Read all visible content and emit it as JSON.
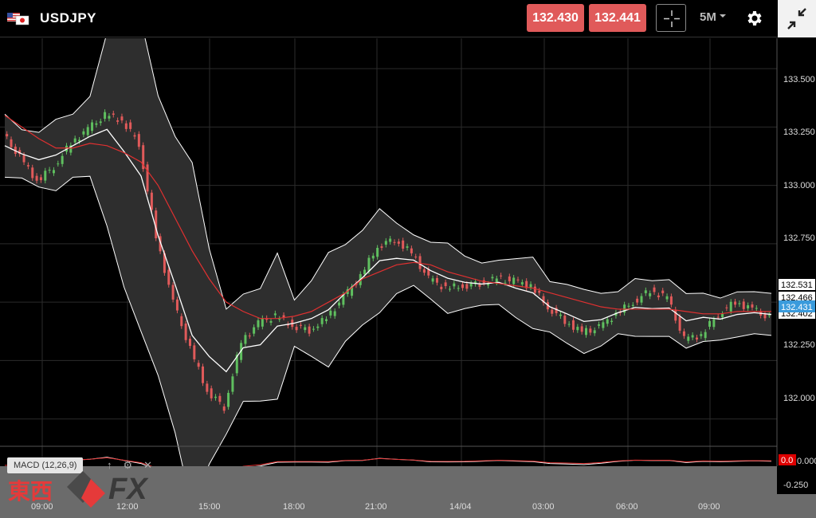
{
  "header": {
    "symbol": "USDJPY",
    "bid": "132.430",
    "ask": "132.441",
    "timeframe": "5M"
  },
  "price_axis": {
    "labels": [
      "133.500",
      "133.250",
      "133.000",
      "132.750",
      "132.250",
      "132.000"
    ],
    "markers": {
      "upper": "132.531",
      "mid": "132.466",
      "lower": "132.402",
      "current": "132.431"
    }
  },
  "time_axis": {
    "labels": [
      "09:00",
      "12:00",
      "15:00",
      "18:00",
      "21:00",
      "14/04",
      "03:00",
      "06:00",
      "09:00"
    ]
  },
  "macd": {
    "label": "MACD (12,26,9)",
    "axis_labels": [
      "0.000",
      "-0.250"
    ],
    "zero_marker": "0.0"
  },
  "watermark": {
    "kanji": "東西",
    "fx": "FX"
  },
  "colors": {
    "bid": "#e05a5a",
    "ask": "#e05a5a",
    "up": "#5fbf5f",
    "down": "#e05a5a",
    "ma": "#e03030",
    "band": "#ffffff",
    "current_marker": "#3a9bdc"
  },
  "chart_data": {
    "type": "line",
    "title": "USDJPY",
    "ylim": [
      131.9,
      133.63
    ],
    "x_ticks": [
      "09:00",
      "12:00",
      "15:00",
      "18:00",
      "21:00",
      "14/04",
      "03:00",
      "06:00",
      "09:00"
    ],
    "series": [
      {
        "values": [
          133.22,
          133.12,
          133.02,
          133.08,
          133.18,
          133.24,
          133.3,
          133.28,
          133.18,
          132.78,
          132.5,
          132.3,
          132.12,
          132.05,
          132.33,
          132.41,
          132.44,
          132.4,
          132.38,
          132.43,
          132.52,
          132.61,
          132.74,
          132.77,
          132.71,
          132.6,
          132.56,
          132.57,
          132.58,
          132.6,
          132.59,
          132.57,
          132.48,
          132.42,
          132.37,
          132.39,
          132.45,
          132.5,
          132.55,
          132.52,
          132.34,
          132.36,
          132.45,
          132.5,
          132.47,
          132.43
        ]
      },
      {
        "values": [
          133.3,
          133.25,
          133.2,
          133.16,
          133.16,
          133.18,
          133.17,
          133.14,
          133.1,
          133.0,
          132.86,
          132.72,
          132.6,
          132.5,
          132.46,
          132.43,
          132.43,
          132.44,
          132.46,
          132.5,
          132.54,
          132.6,
          132.63,
          132.66,
          132.67,
          132.66,
          132.63,
          132.61,
          132.59,
          132.58,
          132.57,
          132.56,
          132.54,
          132.52,
          132.5,
          132.48,
          132.47,
          132.47,
          132.47,
          132.47,
          132.46,
          132.45,
          132.45,
          132.46,
          132.46,
          132.46
        ]
      }
    ],
    "current_price": 132.431
  }
}
